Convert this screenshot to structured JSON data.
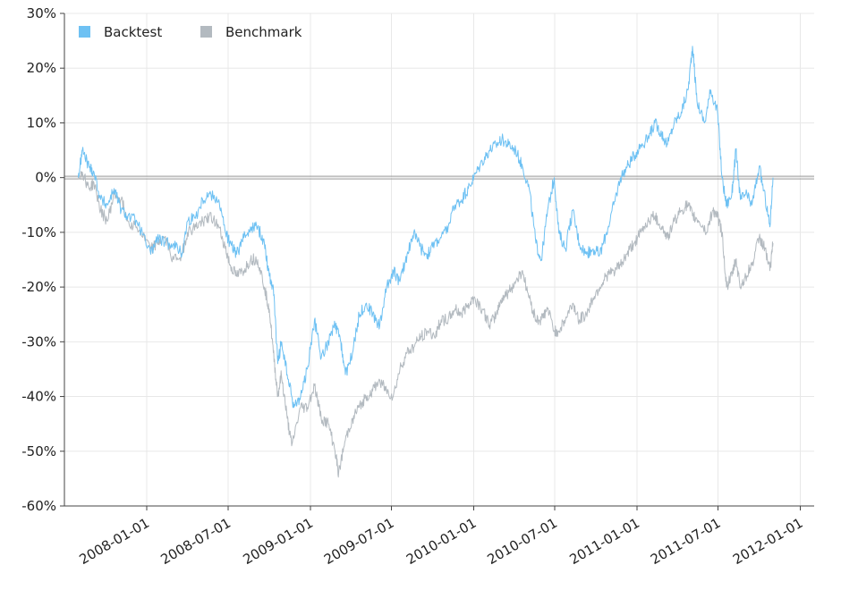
{
  "chart_data": {
    "type": "line",
    "y_axis": {
      "min": -0.6,
      "max": 0.3,
      "ticks": [
        0.3,
        0.2,
        0.1,
        0.0,
        -0.1,
        -0.2,
        -0.3,
        -0.4,
        -0.5,
        -0.6
      ],
      "tick_labels": [
        "30%",
        "20%",
        "10%",
        "0%",
        "-10%",
        "-20%",
        "-30%",
        "-40%",
        "-50%",
        "-60%"
      ],
      "format": "percent"
    },
    "x_axis": {
      "min": "2007-07-01",
      "max": "2012-02-01",
      "ticks": [
        "2008-01-01",
        "2008-07-01",
        "2009-01-01",
        "2009-07-01",
        "2010-01-01",
        "2010-07-01",
        "2011-01-01",
        "2011-07-01",
        "2012-01-01"
      ],
      "tick_labels": [
        "2008-01-01",
        "2008-07-01",
        "2009-01-01",
        "2009-07-01",
        "2010-01-01",
        "2010-07-01",
        "2011-01-01",
        "2011-07-01",
        "2012-01-01"
      ]
    },
    "grid": true,
    "legend_position": "top-left",
    "series": [
      {
        "name": "Backtest",
        "color": "#6ec1f3",
        "points": [
          [
            "2007-08-01",
            0.0
          ],
          [
            "2007-08-10",
            0.05
          ],
          [
            "2007-08-25",
            0.02
          ],
          [
            "2007-09-05",
            0.01
          ],
          [
            "2007-09-20",
            -0.04
          ],
          [
            "2007-10-05",
            -0.05
          ],
          [
            "2007-10-20",
            -0.02
          ],
          [
            "2007-11-05",
            -0.06
          ],
          [
            "2007-11-20",
            -0.07
          ],
          [
            "2007-12-10",
            -0.08
          ],
          [
            "2008-01-10",
            -0.14
          ],
          [
            "2008-01-25",
            -0.11
          ],
          [
            "2008-02-10",
            -0.12
          ],
          [
            "2008-03-01",
            -0.12
          ],
          [
            "2008-03-20",
            -0.14
          ],
          [
            "2008-04-01",
            -0.08
          ],
          [
            "2008-04-20",
            -0.07
          ],
          [
            "2008-05-05",
            -0.04
          ],
          [
            "2008-05-20",
            -0.03
          ],
          [
            "2008-06-10",
            -0.04
          ],
          [
            "2008-06-25",
            -0.1
          ],
          [
            "2008-07-05",
            -0.12
          ],
          [
            "2008-07-20",
            -0.14
          ],
          [
            "2008-08-05",
            -0.11
          ],
          [
            "2008-08-20",
            -0.09
          ],
          [
            "2008-09-05",
            -0.09
          ],
          [
            "2008-09-20",
            -0.12
          ],
          [
            "2008-10-01",
            -0.18
          ],
          [
            "2008-10-10",
            -0.2
          ],
          [
            "2008-10-20",
            -0.34
          ],
          [
            "2008-10-28",
            -0.3
          ],
          [
            "2008-11-10",
            -0.36
          ],
          [
            "2008-11-25",
            -0.42
          ],
          [
            "2008-12-10",
            -0.4
          ],
          [
            "2008-12-25",
            -0.35
          ],
          [
            "2009-01-10",
            -0.26
          ],
          [
            "2009-01-25",
            -0.33
          ],
          [
            "2009-02-10",
            -0.3
          ],
          [
            "2009-02-25",
            -0.27
          ],
          [
            "2009-03-10",
            -0.3
          ],
          [
            "2009-03-20",
            -0.36
          ],
          [
            "2009-04-05",
            -0.32
          ],
          [
            "2009-04-20",
            -0.25
          ],
          [
            "2009-05-05",
            -0.23
          ],
          [
            "2009-05-20",
            -0.25
          ],
          [
            "2009-06-05",
            -0.27
          ],
          [
            "2009-06-20",
            -0.2
          ],
          [
            "2009-07-05",
            -0.17
          ],
          [
            "2009-07-20",
            -0.19
          ],
          [
            "2009-08-05",
            -0.14
          ],
          [
            "2009-08-20",
            -0.1
          ],
          [
            "2009-09-05",
            -0.13
          ],
          [
            "2009-09-20",
            -0.14
          ],
          [
            "2009-10-05",
            -0.12
          ],
          [
            "2009-10-20",
            -0.11
          ],
          [
            "2009-11-05",
            -0.09
          ],
          [
            "2009-11-20",
            -0.05
          ],
          [
            "2009-12-05",
            -0.04
          ],
          [
            "2009-12-20",
            -0.02
          ],
          [
            "2010-01-01",
            0.0
          ],
          [
            "2010-01-20",
            0.03
          ],
          [
            "2010-02-05",
            0.05
          ],
          [
            "2010-02-20",
            0.06
          ],
          [
            "2010-03-05",
            0.07
          ],
          [
            "2010-03-20",
            0.06
          ],
          [
            "2010-04-05",
            0.05
          ],
          [
            "2010-04-20",
            0.02
          ],
          [
            "2010-05-05",
            -0.02
          ],
          [
            "2010-05-20",
            -0.12
          ],
          [
            "2010-06-01",
            -0.15
          ],
          [
            "2010-06-15",
            -0.06
          ],
          [
            "2010-06-30",
            0.0
          ],
          [
            "2010-07-10",
            -0.1
          ],
          [
            "2010-07-25",
            -0.13
          ],
          [
            "2010-08-10",
            -0.06
          ],
          [
            "2010-08-25",
            -0.12
          ],
          [
            "2010-09-10",
            -0.14
          ],
          [
            "2010-09-25",
            -0.13
          ],
          [
            "2010-10-10",
            -0.14
          ],
          [
            "2010-10-25",
            -0.1
          ],
          [
            "2010-11-10",
            -0.05
          ],
          [
            "2010-11-25",
            0.0
          ],
          [
            "2010-12-10",
            0.02
          ],
          [
            "2010-12-25",
            0.04
          ],
          [
            "2011-01-10",
            0.06
          ],
          [
            "2011-01-25",
            0.07
          ],
          [
            "2011-02-10",
            0.1
          ],
          [
            "2011-02-25",
            0.08
          ],
          [
            "2011-03-10",
            0.06
          ],
          [
            "2011-03-25",
            0.1
          ],
          [
            "2011-04-10",
            0.12
          ],
          [
            "2011-04-25",
            0.16
          ],
          [
            "2011-05-05",
            0.24
          ],
          [
            "2011-05-15",
            0.14
          ],
          [
            "2011-06-01",
            0.1
          ],
          [
            "2011-06-15",
            0.16
          ],
          [
            "2011-06-30",
            0.12
          ],
          [
            "2011-07-10",
            0.0
          ],
          [
            "2011-07-20",
            -0.05
          ],
          [
            "2011-08-01",
            -0.03
          ],
          [
            "2011-08-10",
            0.05
          ],
          [
            "2011-08-20",
            -0.04
          ],
          [
            "2011-09-01",
            -0.03
          ],
          [
            "2011-09-15",
            -0.05
          ],
          [
            "2011-10-01",
            0.02
          ],
          [
            "2011-10-15",
            -0.04
          ],
          [
            "2011-10-25",
            -0.09
          ],
          [
            "2011-11-01",
            0.0
          ]
        ]
      },
      {
        "name": "Benchmark",
        "color": "#b3bac0",
        "points": [
          [
            "2007-08-01",
            0.0
          ],
          [
            "2007-08-10",
            0.01
          ],
          [
            "2007-08-25",
            -0.02
          ],
          [
            "2007-09-05",
            -0.01
          ],
          [
            "2007-09-20",
            -0.06
          ],
          [
            "2007-10-05",
            -0.08
          ],
          [
            "2007-10-20",
            -0.03
          ],
          [
            "2007-11-05",
            -0.04
          ],
          [
            "2007-11-20",
            -0.08
          ],
          [
            "2007-12-10",
            -0.09
          ],
          [
            "2008-01-10",
            -0.13
          ],
          [
            "2008-01-25",
            -0.12
          ],
          [
            "2008-02-10",
            -0.11
          ],
          [
            "2008-03-01",
            -0.15
          ],
          [
            "2008-03-20",
            -0.14
          ],
          [
            "2008-04-01",
            -0.1
          ],
          [
            "2008-04-20",
            -0.09
          ],
          [
            "2008-05-05",
            -0.08
          ],
          [
            "2008-05-20",
            -0.07
          ],
          [
            "2008-06-10",
            -0.09
          ],
          [
            "2008-06-25",
            -0.13
          ],
          [
            "2008-07-05",
            -0.16
          ],
          [
            "2008-07-20",
            -0.18
          ],
          [
            "2008-08-05",
            -0.17
          ],
          [
            "2008-08-20",
            -0.15
          ],
          [
            "2008-09-05",
            -0.15
          ],
          [
            "2008-09-20",
            -0.2
          ],
          [
            "2008-10-01",
            -0.24
          ],
          [
            "2008-10-10",
            -0.32
          ],
          [
            "2008-10-20",
            -0.4
          ],
          [
            "2008-10-28",
            -0.36
          ],
          [
            "2008-11-10",
            -0.44
          ],
          [
            "2008-11-20",
            -0.49
          ],
          [
            "2008-12-10",
            -0.42
          ],
          [
            "2008-12-25",
            -0.42
          ],
          [
            "2009-01-10",
            -0.38
          ],
          [
            "2009-01-25",
            -0.44
          ],
          [
            "2009-02-10",
            -0.45
          ],
          [
            "2009-02-25",
            -0.5
          ],
          [
            "2009-03-05",
            -0.54
          ],
          [
            "2009-03-20",
            -0.48
          ],
          [
            "2009-04-05",
            -0.44
          ],
          [
            "2009-04-20",
            -0.42
          ],
          [
            "2009-05-05",
            -0.4
          ],
          [
            "2009-05-20",
            -0.39
          ],
          [
            "2009-06-05",
            -0.37
          ],
          [
            "2009-06-20",
            -0.39
          ],
          [
            "2009-07-05",
            -0.4
          ],
          [
            "2009-07-20",
            -0.35
          ],
          [
            "2009-08-05",
            -0.32
          ],
          [
            "2009-08-20",
            -0.31
          ],
          [
            "2009-09-05",
            -0.29
          ],
          [
            "2009-09-20",
            -0.28
          ],
          [
            "2009-10-05",
            -0.29
          ],
          [
            "2009-10-20",
            -0.26
          ],
          [
            "2009-11-05",
            -0.26
          ],
          [
            "2009-11-20",
            -0.24
          ],
          [
            "2009-12-05",
            -0.25
          ],
          [
            "2009-12-20",
            -0.23
          ],
          [
            "2010-01-01",
            -0.22
          ],
          [
            "2010-01-20",
            -0.24
          ],
          [
            "2010-02-05",
            -0.27
          ],
          [
            "2010-02-20",
            -0.25
          ],
          [
            "2010-03-05",
            -0.22
          ],
          [
            "2010-03-20",
            -0.21
          ],
          [
            "2010-04-05",
            -0.19
          ],
          [
            "2010-04-20",
            -0.17
          ],
          [
            "2010-05-05",
            -0.22
          ],
          [
            "2010-05-20",
            -0.26
          ],
          [
            "2010-06-01",
            -0.26
          ],
          [
            "2010-06-15",
            -0.24
          ],
          [
            "2010-06-30",
            -0.28
          ],
          [
            "2010-07-10",
            -0.28
          ],
          [
            "2010-07-25",
            -0.26
          ],
          [
            "2010-08-10",
            -0.23
          ],
          [
            "2010-08-25",
            -0.26
          ],
          [
            "2010-09-10",
            -0.25
          ],
          [
            "2010-09-25",
            -0.22
          ],
          [
            "2010-10-10",
            -0.2
          ],
          [
            "2010-10-25",
            -0.18
          ],
          [
            "2010-11-10",
            -0.17
          ],
          [
            "2010-11-25",
            -0.16
          ],
          [
            "2010-12-10",
            -0.14
          ],
          [
            "2010-12-25",
            -0.12
          ],
          [
            "2011-01-10",
            -0.1
          ],
          [
            "2011-01-25",
            -0.08
          ],
          [
            "2011-02-10",
            -0.07
          ],
          [
            "2011-02-25",
            -0.09
          ],
          [
            "2011-03-10",
            -0.11
          ],
          [
            "2011-03-25",
            -0.08
          ],
          [
            "2011-04-10",
            -0.06
          ],
          [
            "2011-04-25",
            -0.05
          ],
          [
            "2011-05-05",
            -0.07
          ],
          [
            "2011-05-20",
            -0.08
          ],
          [
            "2011-06-05",
            -0.1
          ],
          [
            "2011-06-20",
            -0.06
          ],
          [
            "2011-06-30",
            -0.07
          ],
          [
            "2011-07-10",
            -0.1
          ],
          [
            "2011-07-20",
            -0.2
          ],
          [
            "2011-08-01",
            -0.18
          ],
          [
            "2011-08-10",
            -0.15
          ],
          [
            "2011-08-20",
            -0.2
          ],
          [
            "2011-09-01",
            -0.18
          ],
          [
            "2011-09-15",
            -0.16
          ],
          [
            "2011-10-01",
            -0.11
          ],
          [
            "2011-10-15",
            -0.13
          ],
          [
            "2011-10-25",
            -0.17
          ],
          [
            "2011-11-01",
            -0.12
          ]
        ]
      }
    ]
  }
}
